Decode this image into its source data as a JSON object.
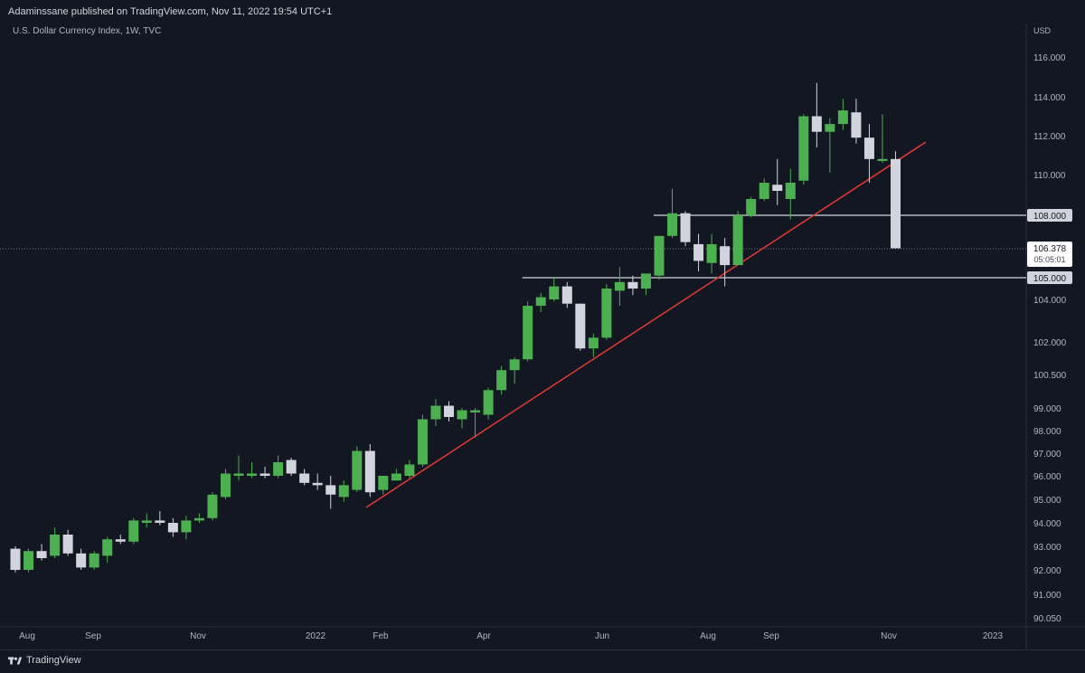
{
  "header": {
    "publisher": "Adaminssane published on TradingView.com, Nov 11, 2022 19:54 UTC+1"
  },
  "symbol": {
    "label": "U.S. Dollar Currency Index, 1W, TVC"
  },
  "footer": {
    "brand": "TradingView"
  },
  "colors": {
    "background": "#131722",
    "up": "#4caf50",
    "down": "#d1d4dc",
    "trendline": "#e53935",
    "hline": "#b2b5be"
  },
  "chart_data": {
    "type": "candlestick",
    "currency": "USD",
    "y_ticks": [
      "116.000",
      "114.000",
      "112.000",
      "110.000",
      "108.000",
      "104.000",
      "102.000",
      "100.500",
      "99.000",
      "98.000",
      "97.000",
      "96.000",
      "95.000",
      "94.000",
      "93.000",
      "92.000",
      "91.000",
      "90.050"
    ],
    "x_ticks": [
      "Aug",
      "Sep",
      "Nov",
      "2022",
      "Feb",
      "Apr",
      "Jun",
      "Aug",
      "Sep",
      "Nov",
      "2023"
    ],
    "last_price": "106.378",
    "countdown": "05:05:01",
    "horizontal_levels": [
      "108.000",
      "105.000"
    ],
    "candles": [
      {
        "o": 92.9,
        "h": 93.0,
        "l": 91.9,
        "c": 92.0
      },
      {
        "o": 92.0,
        "h": 92.9,
        "l": 91.9,
        "c": 92.8
      },
      {
        "o": 92.8,
        "h": 93.1,
        "l": 92.4,
        "c": 92.5
      },
      {
        "o": 92.6,
        "h": 93.8,
        "l": 92.5,
        "c": 93.5
      },
      {
        "o": 93.5,
        "h": 93.7,
        "l": 92.6,
        "c": 92.7
      },
      {
        "o": 92.7,
        "h": 92.9,
        "l": 92.0,
        "c": 92.1
      },
      {
        "o": 92.1,
        "h": 92.8,
        "l": 92.0,
        "c": 92.7
      },
      {
        "o": 92.6,
        "h": 93.4,
        "l": 92.3,
        "c": 93.3
      },
      {
        "o": 93.3,
        "h": 93.5,
        "l": 93.1,
        "c": 93.2
      },
      {
        "o": 93.2,
        "h": 94.2,
        "l": 93.1,
        "c": 94.1
      },
      {
        "o": 94.0,
        "h": 94.4,
        "l": 93.8,
        "c": 94.1
      },
      {
        "o": 94.1,
        "h": 94.5,
        "l": 93.9,
        "c": 94.0
      },
      {
        "o": 94.0,
        "h": 94.2,
        "l": 93.4,
        "c": 93.6
      },
      {
        "o": 93.6,
        "h": 94.3,
        "l": 93.3,
        "c": 94.1
      },
      {
        "o": 94.1,
        "h": 94.4,
        "l": 94.0,
        "c": 94.2
      },
      {
        "o": 94.2,
        "h": 95.3,
        "l": 94.1,
        "c": 95.2
      },
      {
        "o": 95.1,
        "h": 96.3,
        "l": 95.0,
        "c": 96.1
      },
      {
        "o": 96.0,
        "h": 96.9,
        "l": 95.8,
        "c": 96.1
      },
      {
        "o": 96.0,
        "h": 96.6,
        "l": 95.9,
        "c": 96.1
      },
      {
        "o": 96.1,
        "h": 96.4,
        "l": 95.9,
        "c": 96.0
      },
      {
        "o": 96.0,
        "h": 96.9,
        "l": 95.9,
        "c": 96.6
      },
      {
        "o": 96.7,
        "h": 96.8,
        "l": 96.0,
        "c": 96.1
      },
      {
        "o": 96.1,
        "h": 96.3,
        "l": 95.6,
        "c": 95.7
      },
      {
        "o": 95.7,
        "h": 96.1,
        "l": 95.4,
        "c": 95.6
      },
      {
        "o": 95.6,
        "h": 96.0,
        "l": 94.6,
        "c": 95.2
      },
      {
        "o": 95.1,
        "h": 95.8,
        "l": 94.9,
        "c": 95.6
      },
      {
        "o": 95.4,
        "h": 97.3,
        "l": 95.3,
        "c": 97.1
      },
      {
        "o": 97.1,
        "h": 97.4,
        "l": 95.1,
        "c": 95.3
      },
      {
        "o": 95.4,
        "h": 96.0,
        "l": 95.2,
        "c": 96.0
      },
      {
        "o": 95.8,
        "h": 96.3,
        "l": 95.8,
        "c": 96.1
      },
      {
        "o": 96.0,
        "h": 96.7,
        "l": 95.9,
        "c": 96.5
      },
      {
        "o": 96.5,
        "h": 98.7,
        "l": 96.4,
        "c": 98.5
      },
      {
        "o": 98.5,
        "h": 99.4,
        "l": 98.2,
        "c": 99.1
      },
      {
        "o": 99.1,
        "h": 99.3,
        "l": 98.4,
        "c": 98.6
      },
      {
        "o": 98.5,
        "h": 99.0,
        "l": 98.1,
        "c": 98.9
      },
      {
        "o": 98.8,
        "h": 99.0,
        "l": 97.7,
        "c": 98.9
      },
      {
        "o": 98.7,
        "h": 99.9,
        "l": 98.5,
        "c": 99.8
      },
      {
        "o": 99.8,
        "h": 100.9,
        "l": 99.6,
        "c": 100.7
      },
      {
        "o": 100.7,
        "h": 101.3,
        "l": 100.1,
        "c": 101.2
      },
      {
        "o": 101.2,
        "h": 103.9,
        "l": 101.1,
        "c": 103.7
      },
      {
        "o": 103.7,
        "h": 104.3,
        "l": 103.4,
        "c": 104.1
      },
      {
        "o": 104.0,
        "h": 105.0,
        "l": 103.9,
        "c": 104.6
      },
      {
        "o": 104.6,
        "h": 104.8,
        "l": 103.6,
        "c": 103.8
      },
      {
        "o": 103.8,
        "h": 103.8,
        "l": 101.6,
        "c": 101.7
      },
      {
        "o": 101.7,
        "h": 102.4,
        "l": 101.3,
        "c": 102.2
      },
      {
        "o": 102.2,
        "h": 104.7,
        "l": 102.1,
        "c": 104.5
      },
      {
        "o": 104.4,
        "h": 105.5,
        "l": 103.7,
        "c": 104.8
      },
      {
        "o": 104.8,
        "h": 105.1,
        "l": 104.2,
        "c": 104.5
      },
      {
        "o": 104.5,
        "h": 105.0,
        "l": 104.2,
        "c": 105.2
      },
      {
        "o": 105.1,
        "h": 106.9,
        "l": 104.9,
        "c": 107.0
      },
      {
        "o": 107.0,
        "h": 109.3,
        "l": 106.9,
        "c": 108.1
      },
      {
        "o": 108.1,
        "h": 108.2,
        "l": 106.5,
        "c": 106.7
      },
      {
        "o": 106.6,
        "h": 107.1,
        "l": 105.3,
        "c": 105.8
      },
      {
        "o": 105.7,
        "h": 107.1,
        "l": 105.2,
        "c": 106.6
      },
      {
        "o": 106.5,
        "h": 106.9,
        "l": 104.6,
        "c": 105.6
      },
      {
        "o": 105.6,
        "h": 108.2,
        "l": 105.6,
        "c": 108.0
      },
      {
        "o": 108.0,
        "h": 108.9,
        "l": 107.9,
        "c": 108.8
      },
      {
        "o": 108.8,
        "h": 109.8,
        "l": 108.7,
        "c": 109.6
      },
      {
        "o": 109.5,
        "h": 110.8,
        "l": 108.5,
        "c": 109.2
      },
      {
        "o": 108.8,
        "h": 110.3,
        "l": 107.8,
        "c": 109.6
      },
      {
        "o": 109.7,
        "h": 113.1,
        "l": 109.5,
        "c": 113.0
      },
      {
        "o": 113.0,
        "h": 114.7,
        "l": 111.4,
        "c": 112.2
      },
      {
        "o": 112.2,
        "h": 112.9,
        "l": 110.1,
        "c": 112.6
      },
      {
        "o": 112.6,
        "h": 113.9,
        "l": 112.3,
        "c": 113.3
      },
      {
        "o": 113.2,
        "h": 113.9,
        "l": 111.6,
        "c": 111.9
      },
      {
        "o": 111.9,
        "h": 112.6,
        "l": 109.6,
        "c": 110.8
      },
      {
        "o": 110.7,
        "h": 113.1,
        "l": 110.6,
        "c": 110.8
      },
      {
        "o": 110.8,
        "h": 111.2,
        "l": 106.4,
        "c": 106.4
      }
    ]
  }
}
